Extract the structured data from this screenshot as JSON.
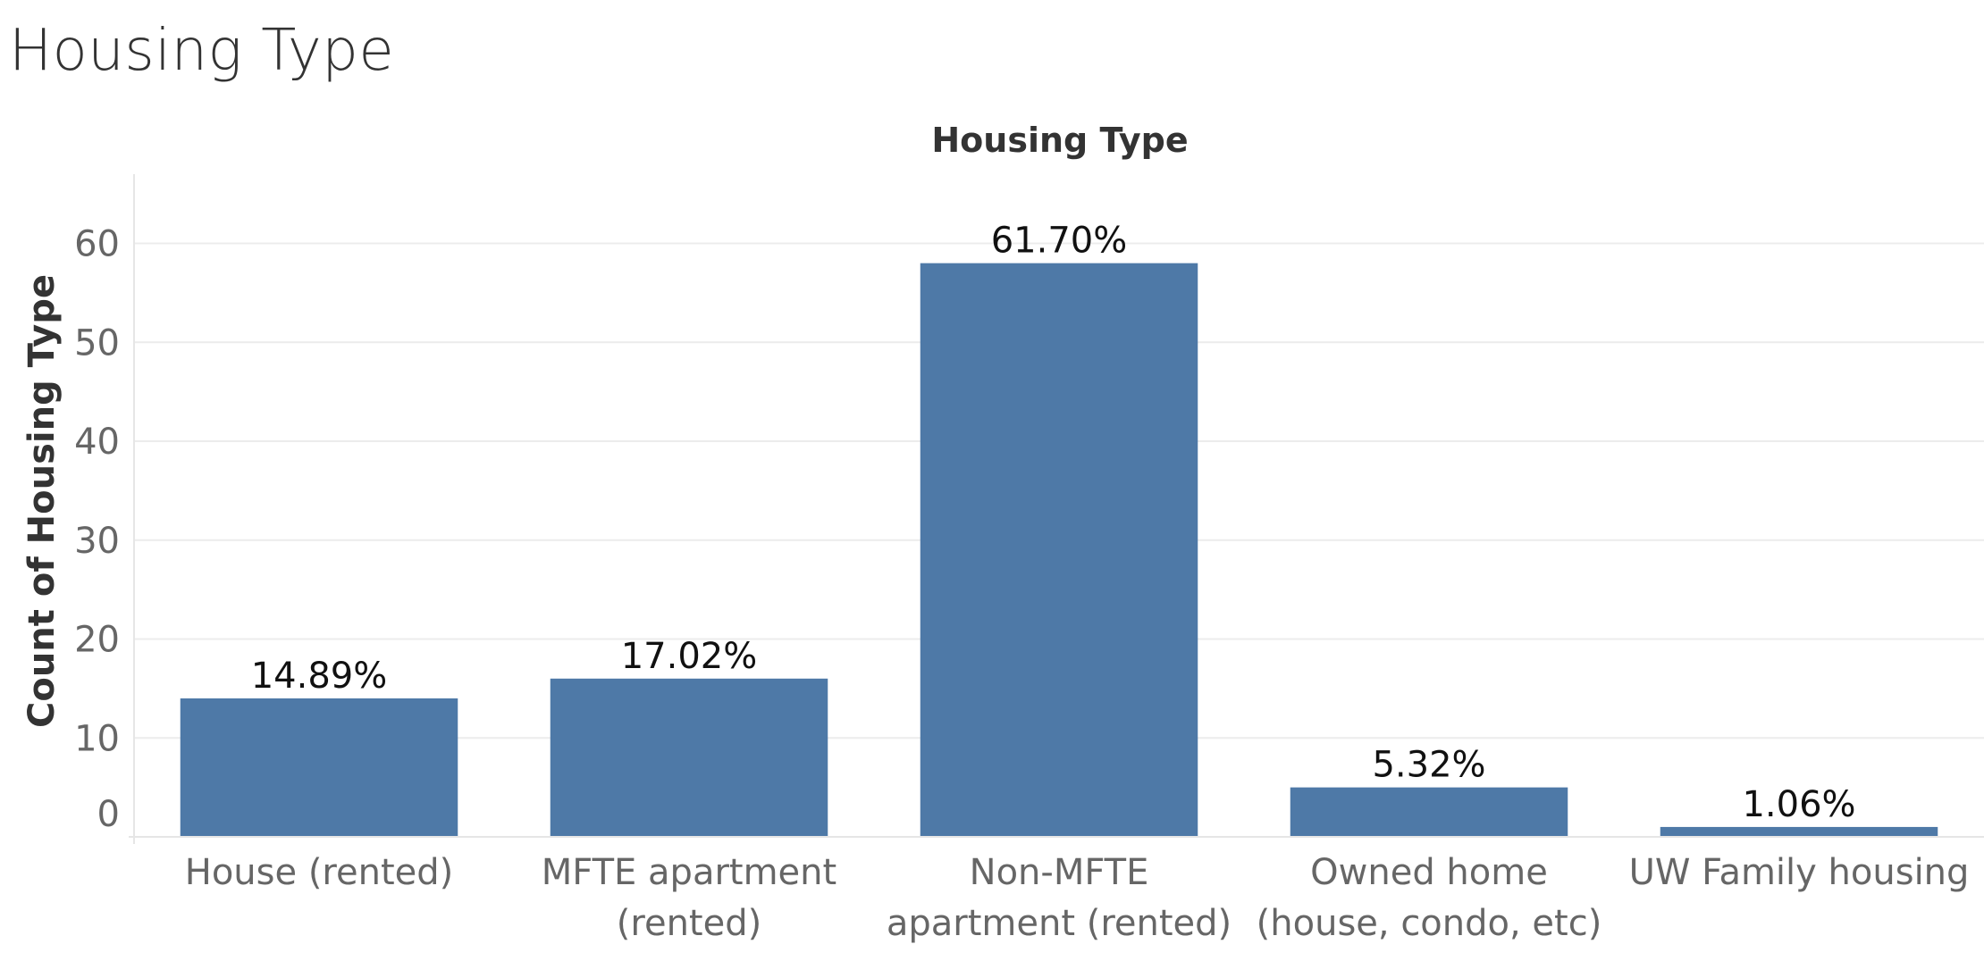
{
  "page": {
    "title": "Housing Type"
  },
  "chart_data": {
    "type": "bar",
    "title": "Housing Type",
    "xlabel": "",
    "ylabel": "Count of Housing Type",
    "categories": [
      [
        "House (rented)"
      ],
      [
        "MFTE apartment",
        "(rented)"
      ],
      [
        "Non-MFTE",
        "apartment (rented)"
      ],
      [
        "Owned home",
        "(house, condo, etc)"
      ],
      [
        "UW Family housing"
      ]
    ],
    "values": [
      14,
      16,
      58,
      5,
      1
    ],
    "data_labels": [
      "14.89%",
      "17.02%",
      "61.70%",
      "5.32%",
      "1.06%"
    ],
    "ylim": [
      0,
      67
    ],
    "yticks": [
      0,
      10,
      20,
      30,
      40,
      50,
      60
    ],
    "grid": true,
    "bar_color": "#4e79a7"
  }
}
